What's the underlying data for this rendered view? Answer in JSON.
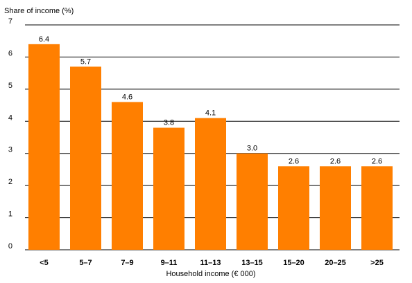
{
  "chart_data": {
    "type": "bar",
    "title": "",
    "ylabel": "Share of income (%)",
    "xlabel": "Household income (€ 000)",
    "categories": [
      "<5",
      "5–7",
      "7–9",
      "9–11",
      "11–13",
      "13–15",
      "15–20",
      "20–25",
      ">25"
    ],
    "values": [
      6.4,
      5.7,
      4.6,
      3.8,
      4.1,
      3.0,
      2.6,
      2.6,
      2.6
    ],
    "value_labels": [
      "6.4",
      "5.7",
      "4.6",
      "3.8",
      "4.1",
      "3.0",
      "2.6",
      "2.6",
      "2.6"
    ],
    "yticks": [
      "0",
      "1",
      "2",
      "3",
      "4",
      "5",
      "6",
      "7"
    ],
    "ylim": [
      0,
      7
    ],
    "grid": true,
    "bar_color": "#ff7f00",
    "grid_color": "#000000"
  }
}
